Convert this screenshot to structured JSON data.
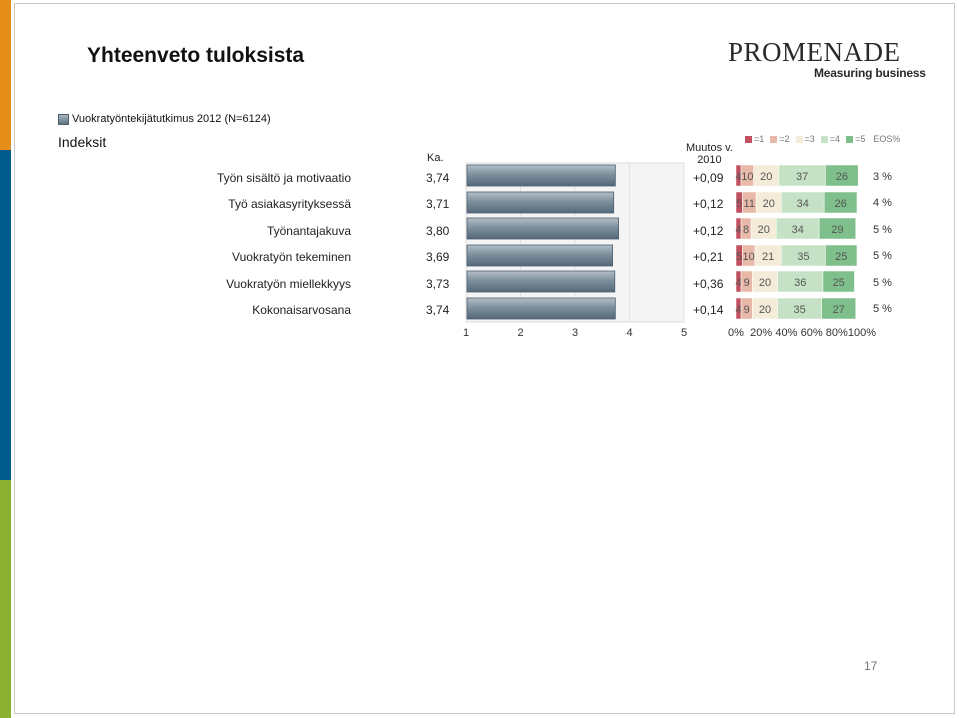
{
  "slide": {
    "title": "Yhteenveto tuloksista",
    "page_number": "17",
    "stripe_colors": [
      "#e58e1a",
      "#005a8c",
      "#8cb032"
    ]
  },
  "logo": {
    "main": "PROMENADE",
    "sub": "Measuring business"
  },
  "legend": {
    "series_label": "Vuokratyöntekijätutkimus 2012 (N=6124)"
  },
  "section_label": "Indeksit",
  "headers": {
    "mean": "Ka.",
    "change_line1": "Muutos v.",
    "change_line2": "2010",
    "eos": "EOS%"
  },
  "dist_legend": [
    {
      "label": "=1",
      "color": "#c0505f"
    },
    {
      "label": "=2",
      "color": "#e8b8a8"
    },
    {
      "label": "=3",
      "color": "#f4ecd8"
    },
    {
      "label": "=4",
      "color": "#c6e2c6"
    },
    {
      "label": "=5",
      "color": "#7fbf8b"
    }
  ],
  "chart_data": {
    "type": "bar",
    "mean_axis": {
      "min": 1,
      "max": 5,
      "ticks": [
        "1",
        "2",
        "3",
        "4",
        "5"
      ]
    },
    "dist_axis": {
      "min": 0,
      "max": 100,
      "ticks": [
        "0%",
        "20%",
        "40%",
        "60%",
        "80%",
        "100%"
      ]
    },
    "rows": [
      {
        "label": "Työn sisältö ja motivaatio",
        "mean": 3.74,
        "mean_text": "3,74",
        "change": "+0,09",
        "dist": [
          4,
          10,
          20,
          37,
          26
        ],
        "dist_text": [
          "4",
          "10",
          "20",
          "37",
          "26"
        ],
        "eos": "3 %"
      },
      {
        "label": "Työ asiakasyrityksessä",
        "mean": 3.71,
        "mean_text": "3,71",
        "change": "+0,12",
        "dist": [
          5,
          11,
          20,
          34,
          26
        ],
        "dist_text": [
          "5",
          "11",
          "20",
          "34",
          "26"
        ],
        "eos": "4 %"
      },
      {
        "label": "Työnantajakuva",
        "mean": 3.8,
        "mean_text": "3,80",
        "change": "+0,12",
        "dist": [
          4,
          8,
          20,
          34,
          29
        ],
        "dist_text": [
          "4",
          "8",
          "20",
          "34",
          "29"
        ],
        "eos": "5 %"
      },
      {
        "label": "Vuokratyön tekeminen",
        "mean": 3.69,
        "mean_text": "3,69",
        "change": "+0,21",
        "dist": [
          5,
          10,
          21,
          35,
          25
        ],
        "dist_text": [
          "5",
          "10",
          "21",
          "35",
          "25"
        ],
        "eos": "5 %"
      },
      {
        "label": "Vuokratyön miellekkyys",
        "mean": 3.73,
        "mean_text": "3,73",
        "change": "+0,36",
        "dist": [
          4,
          9,
          20,
          36,
          25
        ],
        "dist_text": [
          "4",
          "9",
          "20",
          "36",
          "25"
        ],
        "eos": "5 %"
      },
      {
        "label": "Kokonaisarvosana",
        "mean": 3.74,
        "mean_text": "3,74",
        "change": "+0,14",
        "dist": [
          4,
          9,
          20,
          35,
          27
        ],
        "dist_text": [
          "4",
          "9",
          "20",
          "35",
          "27"
        ],
        "eos": "5 %"
      }
    ],
    "bar_color": "#6b7f8e"
  }
}
